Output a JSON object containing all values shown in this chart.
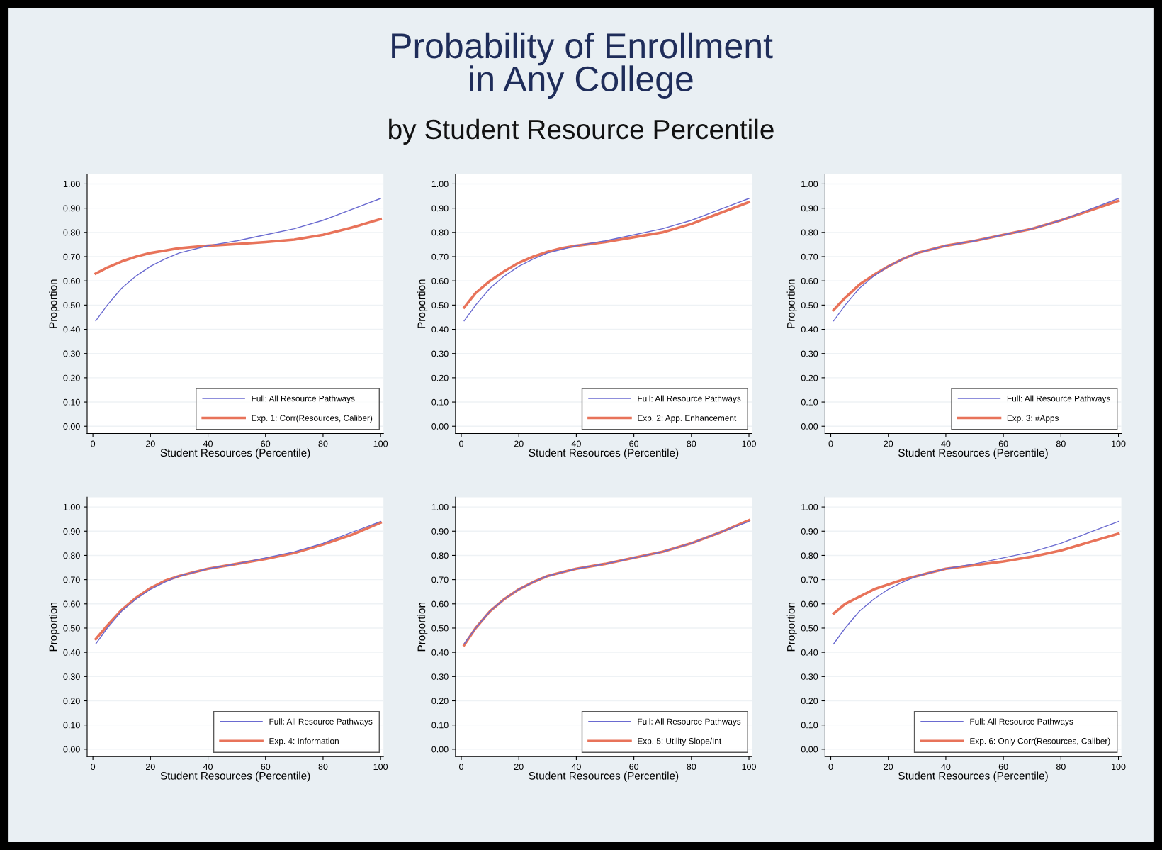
{
  "chart_data": [
    {
      "type": "other",
      "title": "Probability of Enrollment\nin Any College",
      "subtitle": "by Student Resource Percentile"
    },
    {
      "type": "line",
      "xlabel": "Student Resources (Percentile)",
      "ylabel": "Proportion",
      "x": [
        1,
        5,
        10,
        15,
        20,
        25,
        30,
        35,
        40,
        50,
        60,
        70,
        80,
        90,
        100
      ],
      "xlim": [
        -2,
        101
      ],
      "ylim": [
        -0.03,
        1.04
      ],
      "xticks": [
        0,
        20,
        40,
        60,
        80,
        100
      ],
      "yticks": [
        {
          "value": 0,
          "label": "0.00"
        },
        {
          "value": 0.1,
          "label": "0.10"
        },
        {
          "value": 0.2,
          "label": "0.20"
        },
        {
          "value": 0.3,
          "label": "0.30"
        },
        {
          "value": 0.4,
          "label": "0.40"
        },
        {
          "value": 0.5,
          "label": "0.50"
        },
        {
          "value": 0.6,
          "label": "0.60"
        },
        {
          "value": 0.7,
          "label": "0.70"
        },
        {
          "value": 0.8,
          "label": "0.80"
        },
        {
          "value": 0.9,
          "label": "0.90"
        },
        {
          "value": 1.0,
          "label": "1.00"
        }
      ],
      "grid": "y",
      "legend": "bottom right",
      "series": [
        {
          "name": "Full: All Resource Pathways",
          "color": "#6a6ad0",
          "values": [
            0.435,
            0.5,
            0.57,
            0.62,
            0.66,
            0.69,
            0.715,
            0.73,
            0.745,
            0.765,
            0.79,
            0.815,
            0.85,
            0.895,
            0.94
          ]
        },
        {
          "name": "Exp. 1: Corr(Resources, Caliber)",
          "color": "#e8735a",
          "values": [
            0.63,
            0.655,
            0.68,
            0.7,
            0.715,
            0.725,
            0.735,
            0.74,
            0.745,
            0.752,
            0.76,
            0.77,
            0.79,
            0.82,
            0.855
          ]
        }
      ]
    },
    {
      "type": "line",
      "xlabel": "Student Resources (Percentile)",
      "ylabel": "Proportion",
      "x": [
        1,
        5,
        10,
        15,
        20,
        25,
        30,
        35,
        40,
        50,
        60,
        70,
        80,
        90,
        100
      ],
      "xlim": [
        -2,
        101
      ],
      "ylim": [
        -0.03,
        1.04
      ],
      "xticks": [
        0,
        20,
        40,
        60,
        80,
        100
      ],
      "yticks": [
        {
          "value": 0,
          "label": "0.00"
        },
        {
          "value": 0.1,
          "label": "0.10"
        },
        {
          "value": 0.2,
          "label": "0.20"
        },
        {
          "value": 0.3,
          "label": "0.30"
        },
        {
          "value": 0.4,
          "label": "0.40"
        },
        {
          "value": 0.5,
          "label": "0.50"
        },
        {
          "value": 0.6,
          "label": "0.60"
        },
        {
          "value": 0.7,
          "label": "0.70"
        },
        {
          "value": 0.8,
          "label": "0.80"
        },
        {
          "value": 0.9,
          "label": "0.90"
        },
        {
          "value": 1.0,
          "label": "1.00"
        }
      ],
      "grid": "y",
      "legend": "bottom right",
      "series": [
        {
          "name": "Full: All Resource Pathways",
          "color": "#6a6ad0",
          "values": [
            0.435,
            0.5,
            0.57,
            0.62,
            0.66,
            0.69,
            0.715,
            0.73,
            0.745,
            0.765,
            0.79,
            0.815,
            0.85,
            0.895,
            0.94
          ]
        },
        {
          "name": "Exp. 2: App. Enhancement",
          "color": "#e8735a",
          "values": [
            0.49,
            0.55,
            0.6,
            0.64,
            0.675,
            0.7,
            0.72,
            0.735,
            0.745,
            0.76,
            0.78,
            0.8,
            0.835,
            0.88,
            0.925
          ]
        }
      ]
    },
    {
      "type": "line",
      "xlabel": "Student Resources (Percentile)",
      "ylabel": "Proportion",
      "x": [
        1,
        5,
        10,
        15,
        20,
        25,
        30,
        35,
        40,
        50,
        60,
        70,
        80,
        90,
        100
      ],
      "xlim": [
        -2,
        101
      ],
      "ylim": [
        -0.03,
        1.04
      ],
      "xticks": [
        0,
        20,
        40,
        60,
        80,
        100
      ],
      "yticks": [
        {
          "value": 0,
          "label": "0.00"
        },
        {
          "value": 0.1,
          "label": "0.10"
        },
        {
          "value": 0.2,
          "label": "0.20"
        },
        {
          "value": 0.3,
          "label": "0.30"
        },
        {
          "value": 0.4,
          "label": "0.40"
        },
        {
          "value": 0.5,
          "label": "0.50"
        },
        {
          "value": 0.6,
          "label": "0.60"
        },
        {
          "value": 0.7,
          "label": "0.70"
        },
        {
          "value": 0.8,
          "label": "0.80"
        },
        {
          "value": 0.9,
          "label": "0.90"
        },
        {
          "value": 1.0,
          "label": "1.00"
        }
      ],
      "grid": "y",
      "legend": "bottom right",
      "series": [
        {
          "name": "Full: All Resource Pathways",
          "color": "#6a6ad0",
          "values": [
            0.435,
            0.5,
            0.57,
            0.62,
            0.66,
            0.69,
            0.715,
            0.73,
            0.745,
            0.765,
            0.79,
            0.815,
            0.85,
            0.895,
            0.94
          ]
        },
        {
          "name": "Exp. 3: #Apps",
          "color": "#e8735a",
          "values": [
            0.48,
            0.53,
            0.585,
            0.625,
            0.66,
            0.69,
            0.715,
            0.73,
            0.745,
            0.765,
            0.79,
            0.815,
            0.85,
            0.89,
            0.93
          ]
        }
      ]
    },
    {
      "type": "line",
      "xlabel": "Student Resources (Percentile)",
      "ylabel": "Proportion",
      "x": [
        1,
        5,
        10,
        15,
        20,
        25,
        30,
        35,
        40,
        50,
        60,
        70,
        80,
        90,
        100
      ],
      "xlim": [
        -2,
        101
      ],
      "ylim": [
        -0.03,
        1.04
      ],
      "xticks": [
        0,
        20,
        40,
        60,
        80,
        100
      ],
      "yticks": [
        {
          "value": 0,
          "label": "0.00"
        },
        {
          "value": 0.1,
          "label": "0.10"
        },
        {
          "value": 0.2,
          "label": "0.20"
        },
        {
          "value": 0.3,
          "label": "0.30"
        },
        {
          "value": 0.4,
          "label": "0.40"
        },
        {
          "value": 0.5,
          "label": "0.50"
        },
        {
          "value": 0.6,
          "label": "0.60"
        },
        {
          "value": 0.7,
          "label": "0.70"
        },
        {
          "value": 0.8,
          "label": "0.80"
        },
        {
          "value": 0.9,
          "label": "0.90"
        },
        {
          "value": 1.0,
          "label": "1.00"
        }
      ],
      "grid": "y",
      "legend": "bottom right",
      "series": [
        {
          "name": "Full: All Resource Pathways",
          "color": "#6a6ad0",
          "values": [
            0.435,
            0.5,
            0.57,
            0.62,
            0.66,
            0.69,
            0.715,
            0.73,
            0.745,
            0.765,
            0.79,
            0.815,
            0.85,
            0.895,
            0.94
          ]
        },
        {
          "name": "Exp. 4: Information",
          "color": "#e8735a",
          "values": [
            0.455,
            0.51,
            0.575,
            0.625,
            0.665,
            0.695,
            0.715,
            0.73,
            0.745,
            0.765,
            0.785,
            0.81,
            0.845,
            0.885,
            0.935
          ]
        }
      ]
    },
    {
      "type": "line",
      "xlabel": "Student Resources (Percentile)",
      "ylabel": "Proportion",
      "x": [
        1,
        5,
        10,
        15,
        20,
        25,
        30,
        35,
        40,
        50,
        60,
        70,
        80,
        90,
        100
      ],
      "xlim": [
        -2,
        101
      ],
      "ylim": [
        -0.03,
        1.04
      ],
      "xticks": [
        0,
        20,
        40,
        60,
        80,
        100
      ],
      "yticks": [
        {
          "value": 0,
          "label": "0.00"
        },
        {
          "value": 0.1,
          "label": "0.10"
        },
        {
          "value": 0.2,
          "label": "0.20"
        },
        {
          "value": 0.3,
          "label": "0.30"
        },
        {
          "value": 0.4,
          "label": "0.40"
        },
        {
          "value": 0.5,
          "label": "0.50"
        },
        {
          "value": 0.6,
          "label": "0.60"
        },
        {
          "value": 0.7,
          "label": "0.70"
        },
        {
          "value": 0.8,
          "label": "0.80"
        },
        {
          "value": 0.9,
          "label": "0.90"
        },
        {
          "value": 1.0,
          "label": "1.00"
        }
      ],
      "grid": "y",
      "legend": "bottom right",
      "series": [
        {
          "name": "Full: All Resource Pathways",
          "color": "#6a6ad0",
          "values": [
            0.435,
            0.5,
            0.57,
            0.62,
            0.66,
            0.69,
            0.715,
            0.73,
            0.745,
            0.765,
            0.79,
            0.815,
            0.85,
            0.895,
            0.94
          ]
        },
        {
          "name": "Exp. 5: Utility Slope/Int",
          "color": "#e8735a",
          "values": [
            0.43,
            0.5,
            0.57,
            0.62,
            0.66,
            0.69,
            0.715,
            0.73,
            0.745,
            0.765,
            0.79,
            0.815,
            0.85,
            0.895,
            0.945
          ]
        }
      ]
    },
    {
      "type": "line",
      "xlabel": "Student Resources (Percentile)",
      "ylabel": "Proportion",
      "x": [
        1,
        5,
        10,
        15,
        20,
        25,
        30,
        35,
        40,
        50,
        60,
        70,
        80,
        90,
        100
      ],
      "xlim": [
        -2,
        101
      ],
      "ylim": [
        -0.03,
        1.04
      ],
      "xticks": [
        0,
        20,
        40,
        60,
        80,
        100
      ],
      "yticks": [
        {
          "value": 0,
          "label": "0.00"
        },
        {
          "value": 0.1,
          "label": "0.10"
        },
        {
          "value": 0.2,
          "label": "0.20"
        },
        {
          "value": 0.3,
          "label": "0.30"
        },
        {
          "value": 0.4,
          "label": "0.40"
        },
        {
          "value": 0.5,
          "label": "0.50"
        },
        {
          "value": 0.6,
          "label": "0.60"
        },
        {
          "value": 0.7,
          "label": "0.70"
        },
        {
          "value": 0.8,
          "label": "0.80"
        },
        {
          "value": 0.9,
          "label": "0.90"
        },
        {
          "value": 1.0,
          "label": "1.00"
        }
      ],
      "grid": "y",
      "legend": "bottom right",
      "series": [
        {
          "name": "Full: All Resource Pathways",
          "color": "#6a6ad0",
          "values": [
            0.435,
            0.5,
            0.57,
            0.62,
            0.66,
            0.69,
            0.715,
            0.73,
            0.745,
            0.765,
            0.79,
            0.815,
            0.85,
            0.895,
            0.94
          ]
        },
        {
          "name": "Exp. 6: Only Corr(Resources, Caliber)",
          "color": "#e8735a",
          "values": [
            0.56,
            0.6,
            0.63,
            0.66,
            0.68,
            0.7,
            0.715,
            0.73,
            0.745,
            0.76,
            0.775,
            0.795,
            0.82,
            0.855,
            0.89
          ]
        }
      ]
    }
  ]
}
